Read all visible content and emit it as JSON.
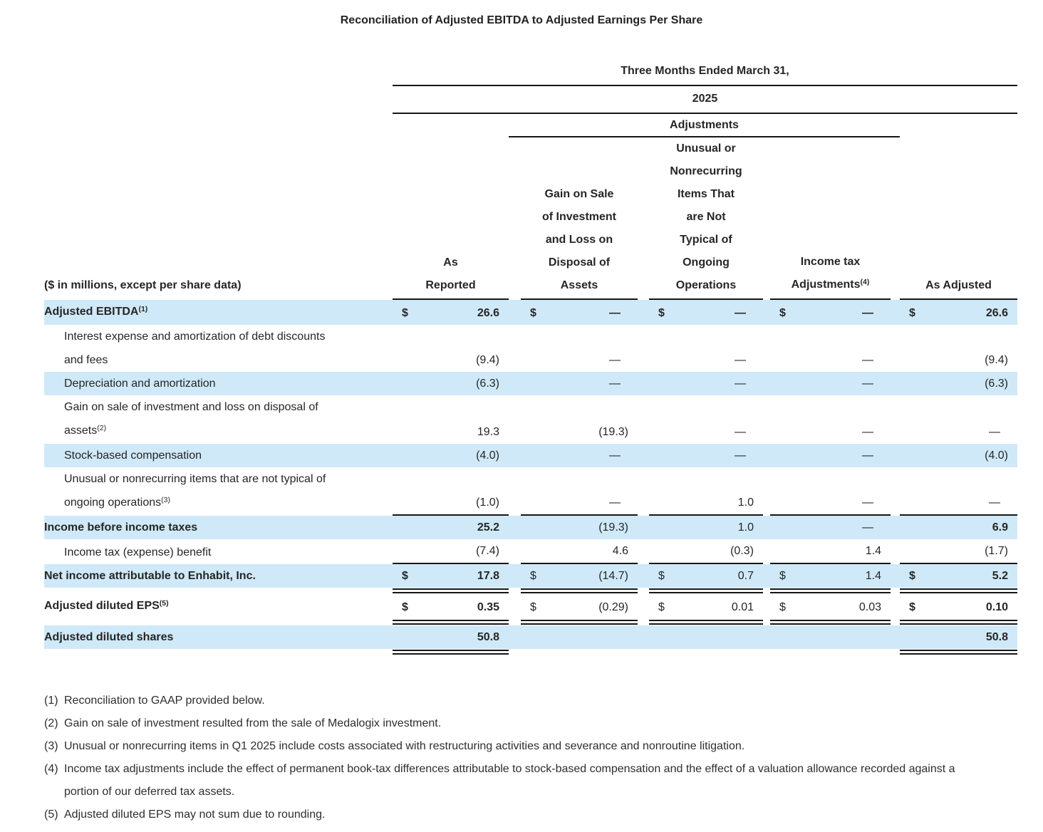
{
  "title": "Reconciliation of Adjusted EBITDA to Adjusted Earnings Per Share",
  "colors": {
    "highlight": "#cfe9f8",
    "rule": "#161616",
    "text": "#262626"
  },
  "table": {
    "period": "Three Months Ended March 31,",
    "year": "2025",
    "adjustments": "Adjustments",
    "rowhead": "($ in millions, except per share data)",
    "columns": [
      {
        "lines": [
          "As",
          "Reported"
        ],
        "sup": ""
      },
      {
        "lines": [
          "Gain on Sale",
          "of Investment",
          "and Loss on",
          "Disposal of",
          "Assets"
        ],
        "sup": ""
      },
      {
        "lines": [
          "Unusual or",
          "Nonrecurring",
          "Items That",
          "are Not",
          "Typical of",
          "Ongoing",
          "Operations"
        ],
        "sup": ""
      },
      {
        "lines": [
          "Income tax",
          "Adjustments"
        ],
        "sup": "(4)"
      },
      {
        "lines": [
          "As Adjusted"
        ],
        "sup": ""
      }
    ],
    "rows": [
      {
        "label": [
          "Adjusted EBITDA"
        ],
        "sup": "(1)",
        "indent": false,
        "bold": true,
        "hl": true,
        "cells": [
          {
            "d": "$",
            "v": "26.6",
            "b": true
          },
          {
            "d": "$",
            "v": "—",
            "b": true
          },
          {
            "d": "$",
            "v": "—",
            "b": true
          },
          {
            "d": "$",
            "v": "—",
            "b": true
          },
          {
            "d": "$",
            "v": "26.6",
            "b": true
          }
        ],
        "rb": ""
      },
      {
        "label": [
          "Interest expense and amortization of debt discounts",
          "and fees"
        ],
        "sup": "",
        "indent": true,
        "bold": false,
        "hl": false,
        "cells": [
          {
            "d": "",
            "v": "(9.4)"
          },
          {
            "d": "",
            "v": "—"
          },
          {
            "d": "",
            "v": "—"
          },
          {
            "d": "",
            "v": "—"
          },
          {
            "d": "",
            "v": "(9.4)"
          }
        ],
        "rb": ""
      },
      {
        "label": [
          "Depreciation and amortization"
        ],
        "sup": "",
        "indent": true,
        "bold": false,
        "hl": true,
        "cells": [
          {
            "d": "",
            "v": "(6.3)"
          },
          {
            "d": "",
            "v": "—"
          },
          {
            "d": "",
            "v": "—"
          },
          {
            "d": "",
            "v": "—"
          },
          {
            "d": "",
            "v": "(6.3)"
          }
        ],
        "rb": ""
      },
      {
        "label": [
          "Gain on sale of investment and loss on disposal of",
          "assets"
        ],
        "sup": "(2)",
        "indent": true,
        "bold": false,
        "hl": false,
        "cells": [
          {
            "d": "",
            "v": "19.3"
          },
          {
            "d": "",
            "v": "(19.3)"
          },
          {
            "d": "",
            "v": "—"
          },
          {
            "d": "",
            "v": "—"
          },
          {
            "d": "",
            "v": "—"
          }
        ],
        "rb": ""
      },
      {
        "label": [
          "Stock-based compensation"
        ],
        "sup": "",
        "indent": true,
        "bold": false,
        "hl": true,
        "cells": [
          {
            "d": "",
            "v": "(4.0)"
          },
          {
            "d": "",
            "v": "—"
          },
          {
            "d": "",
            "v": "—"
          },
          {
            "d": "",
            "v": "—"
          },
          {
            "d": "",
            "v": "(4.0)"
          }
        ],
        "rb": ""
      },
      {
        "label": [
          "Unusual or nonrecurring items that are not typical of",
          "ongoing operations"
        ],
        "sup": "(3)",
        "indent": true,
        "bold": false,
        "hl": false,
        "cells": [
          {
            "d": "",
            "v": "(1.0)"
          },
          {
            "d": "",
            "v": "—"
          },
          {
            "d": "",
            "v": "1.0"
          },
          {
            "d": "",
            "v": "—"
          },
          {
            "d": "",
            "v": "—"
          }
        ],
        "rb": "single"
      },
      {
        "label": [
          "Income before income taxes"
        ],
        "sup": "",
        "indent": false,
        "bold": true,
        "hl": true,
        "cells": [
          {
            "d": "",
            "v": "25.2",
            "b": true
          },
          {
            "d": "",
            "v": "(19.3)"
          },
          {
            "d": "",
            "v": "1.0"
          },
          {
            "d": "",
            "v": "—"
          },
          {
            "d": "",
            "v": "6.9",
            "b": true
          }
        ],
        "rb": ""
      },
      {
        "label": [
          "Income tax (expense) benefit"
        ],
        "sup": "",
        "indent": true,
        "bold": false,
        "hl": false,
        "cells": [
          {
            "d": "",
            "v": "(7.4)"
          },
          {
            "d": "",
            "v": "4.6"
          },
          {
            "d": "",
            "v": "(0.3)"
          },
          {
            "d": "",
            "v": "1.4"
          },
          {
            "d": "",
            "v": "(1.7)"
          }
        ],
        "rb": "single"
      },
      {
        "label": [
          "Net income attributable to Enhabit, Inc."
        ],
        "sup": "",
        "indent": false,
        "bold": true,
        "hl": true,
        "cells": [
          {
            "d": "$",
            "v": "17.8",
            "b": true
          },
          {
            "d": "$",
            "v": "(14.7)"
          },
          {
            "d": "$",
            "v": "0.7"
          },
          {
            "d": "$",
            "v": "1.4"
          },
          {
            "d": "$",
            "v": "5.2",
            "b": true
          }
        ],
        "rb": "double"
      },
      {
        "label": [
          "Adjusted diluted EPS"
        ],
        "sup": "(5)",
        "indent": false,
        "bold": true,
        "hl": false,
        "cells": [
          {
            "d": "$",
            "v": "0.35",
            "b": true
          },
          {
            "d": "$",
            "v": "(0.29)"
          },
          {
            "d": "$",
            "v": "0.01"
          },
          {
            "d": "$",
            "v": "0.03"
          },
          {
            "d": "$",
            "v": "0.10",
            "b": true
          }
        ],
        "rb": "double"
      },
      {
        "label": [
          "Adjusted diluted shares"
        ],
        "sup": "",
        "indent": false,
        "bold": true,
        "hl": true,
        "cells": [
          {
            "d": "",
            "v": "50.8",
            "b": true
          },
          {
            "d": "",
            "v": ""
          },
          {
            "d": "",
            "v": ""
          },
          {
            "d": "",
            "v": ""
          },
          {
            "d": "",
            "v": "50.8",
            "b": true
          }
        ],
        "rb": "double-ends"
      }
    ]
  },
  "footnotes": [
    {
      "marker": "(1)",
      "text": "Reconciliation to GAAP provided below."
    },
    {
      "marker": "(2)",
      "text": "Gain on sale of investment resulted from the sale of Medalogix investment."
    },
    {
      "marker": "(3)",
      "text": "Unusual or nonrecurring items in Q1 2025 include costs associated with restructuring activities and severance and nonroutine litigation."
    },
    {
      "marker": "(4)",
      "text": "Income tax adjustments include the effect of permanent book-tax differences attributable to stock-based compensation and the effect of a valuation allowance recorded against a portion of our deferred tax assets."
    },
    {
      "marker": "(5)",
      "text": "Adjusted diluted EPS may not sum due to rounding."
    }
  ]
}
